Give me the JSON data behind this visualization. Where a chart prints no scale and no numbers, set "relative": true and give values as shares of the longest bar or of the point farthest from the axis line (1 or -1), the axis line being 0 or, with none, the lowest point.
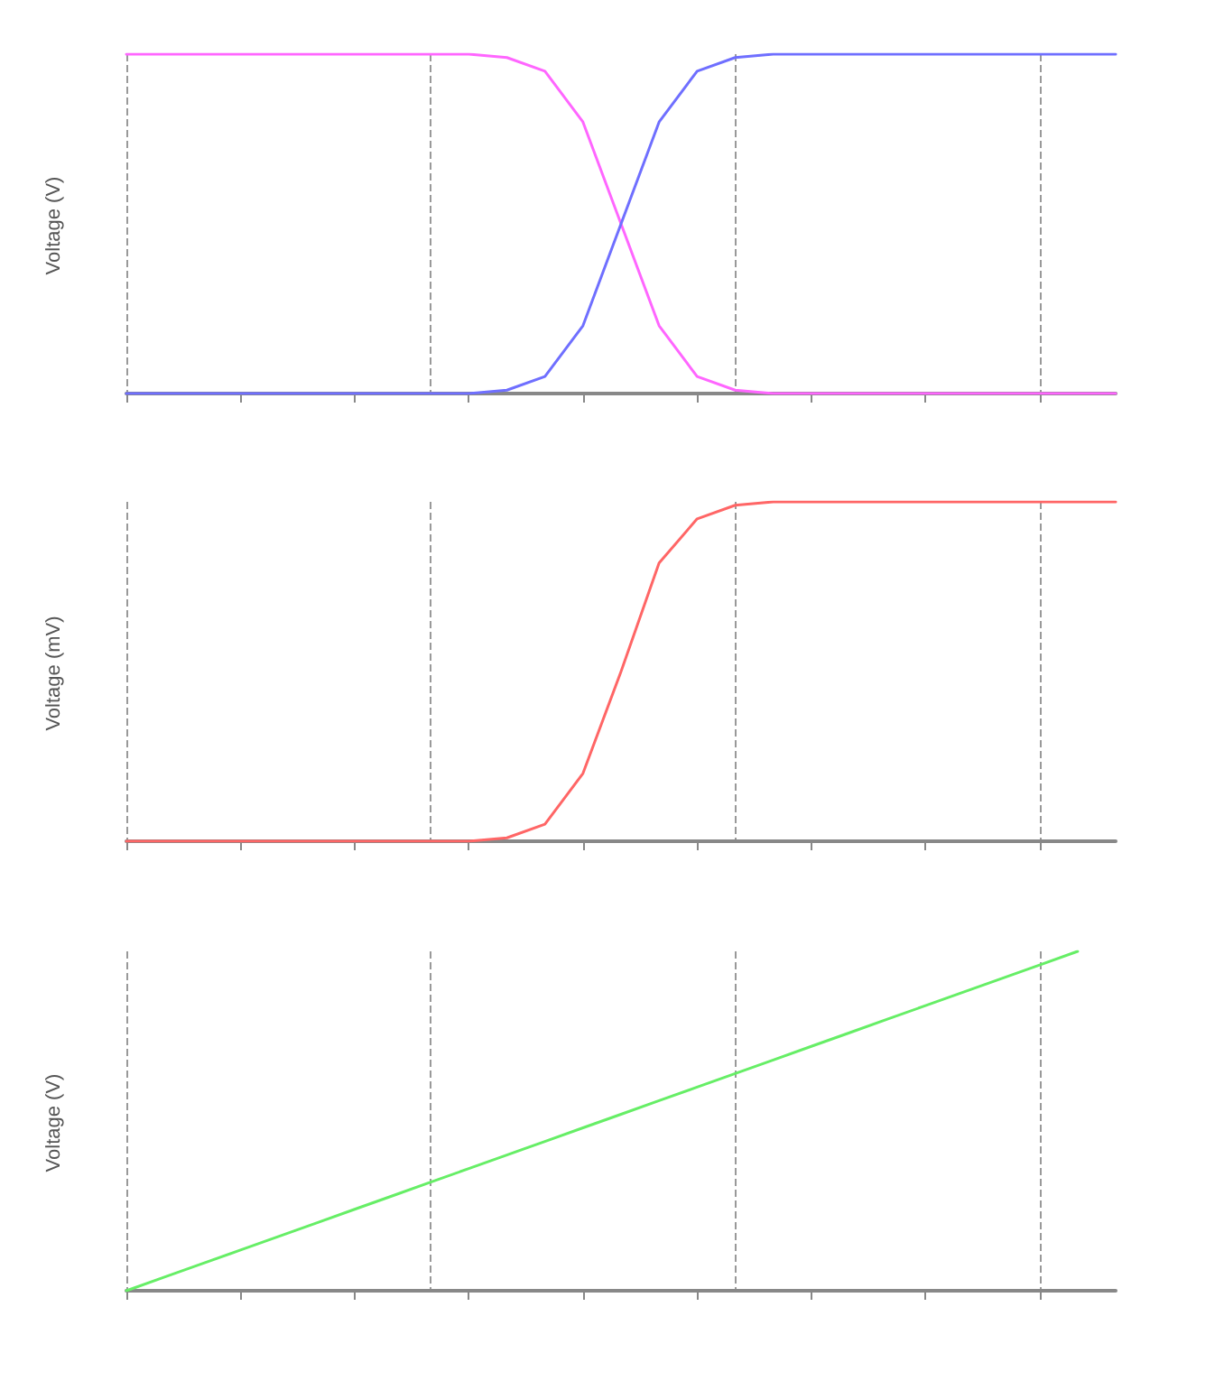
{
  "chart_data": [
    {
      "type": "line",
      "relative": true,
      "ylabel": "Voltage (V)",
      "categories": [
        null,
        null,
        null,
        null,
        null,
        null,
        null,
        null,
        null,
        null,
        null,
        null,
        null,
        null,
        null,
        null,
        null,
        null,
        null,
        null,
        null,
        null,
        null,
        null,
        null,
        null,
        null
      ],
      "grid": "x",
      "marker": "none",
      "line_style": "solid",
      "series": [
        {
          "color": "#ff66ff",
          "values": [
            1,
            1,
            1,
            1,
            1,
            1,
            1,
            1,
            1,
            1,
            0.99,
            0.95,
            0.8,
            0.5,
            0.2,
            0.05,
            0.01,
            0,
            0,
            0,
            0,
            0,
            0,
            0,
            0,
            0,
            0
          ]
        },
        {
          "color": "#6f6fff",
          "values": [
            0,
            0,
            0,
            0,
            0,
            0,
            0,
            0,
            0,
            0,
            0.01,
            0.05,
            0.2,
            0.5,
            0.8,
            0.95,
            0.99,
            1,
            1,
            1,
            1,
            1,
            1,
            1,
            1,
            1,
            1
          ]
        }
      ]
    },
    {
      "type": "line",
      "relative": true,
      "ylabel": "Voltage (mV)",
      "categories": [
        null,
        null,
        null,
        null,
        null,
        null,
        null,
        null,
        null,
        null,
        null,
        null,
        null,
        null,
        null,
        null,
        null,
        null,
        null,
        null,
        null,
        null,
        null,
        null,
        null,
        null,
        null
      ],
      "grid": "x",
      "marker": "none",
      "line_style": "solid",
      "series": [
        {
          "color": "#ff6666",
          "values": [
            0,
            0,
            0,
            0,
            0,
            0,
            0,
            0,
            0,
            0,
            0.01,
            0.05,
            0.2,
            0.5,
            0.82,
            0.95,
            0.99,
            1,
            1,
            1,
            1,
            1,
            1,
            1,
            1,
            1,
            1
          ]
        }
      ]
    },
    {
      "type": "line",
      "relative": true,
      "ylabel": "Voltage (V)",
      "categories": [
        null,
        null,
        null,
        null,
        null,
        null,
        null,
        null,
        null,
        null,
        null,
        null,
        null,
        null,
        null,
        null,
        null,
        null,
        null,
        null,
        null,
        null,
        null,
        null,
        null,
        null,
        null
      ],
      "grid": "x",
      "marker": "none",
      "line_style": "solid",
      "series": [
        {
          "color": "#66ee66",
          "values": [
            0,
            0.04,
            0.08,
            0.12,
            0.16,
            0.2,
            0.24,
            0.28,
            0.32,
            0.36,
            0.4,
            0.44,
            0.48,
            0.52,
            0.56,
            0.6,
            0.64,
            0.68,
            0.72,
            0.76,
            0.8,
            0.84,
            0.88,
            0.92,
            0.96,
            1,
            null
          ]
        }
      ]
    }
  ]
}
